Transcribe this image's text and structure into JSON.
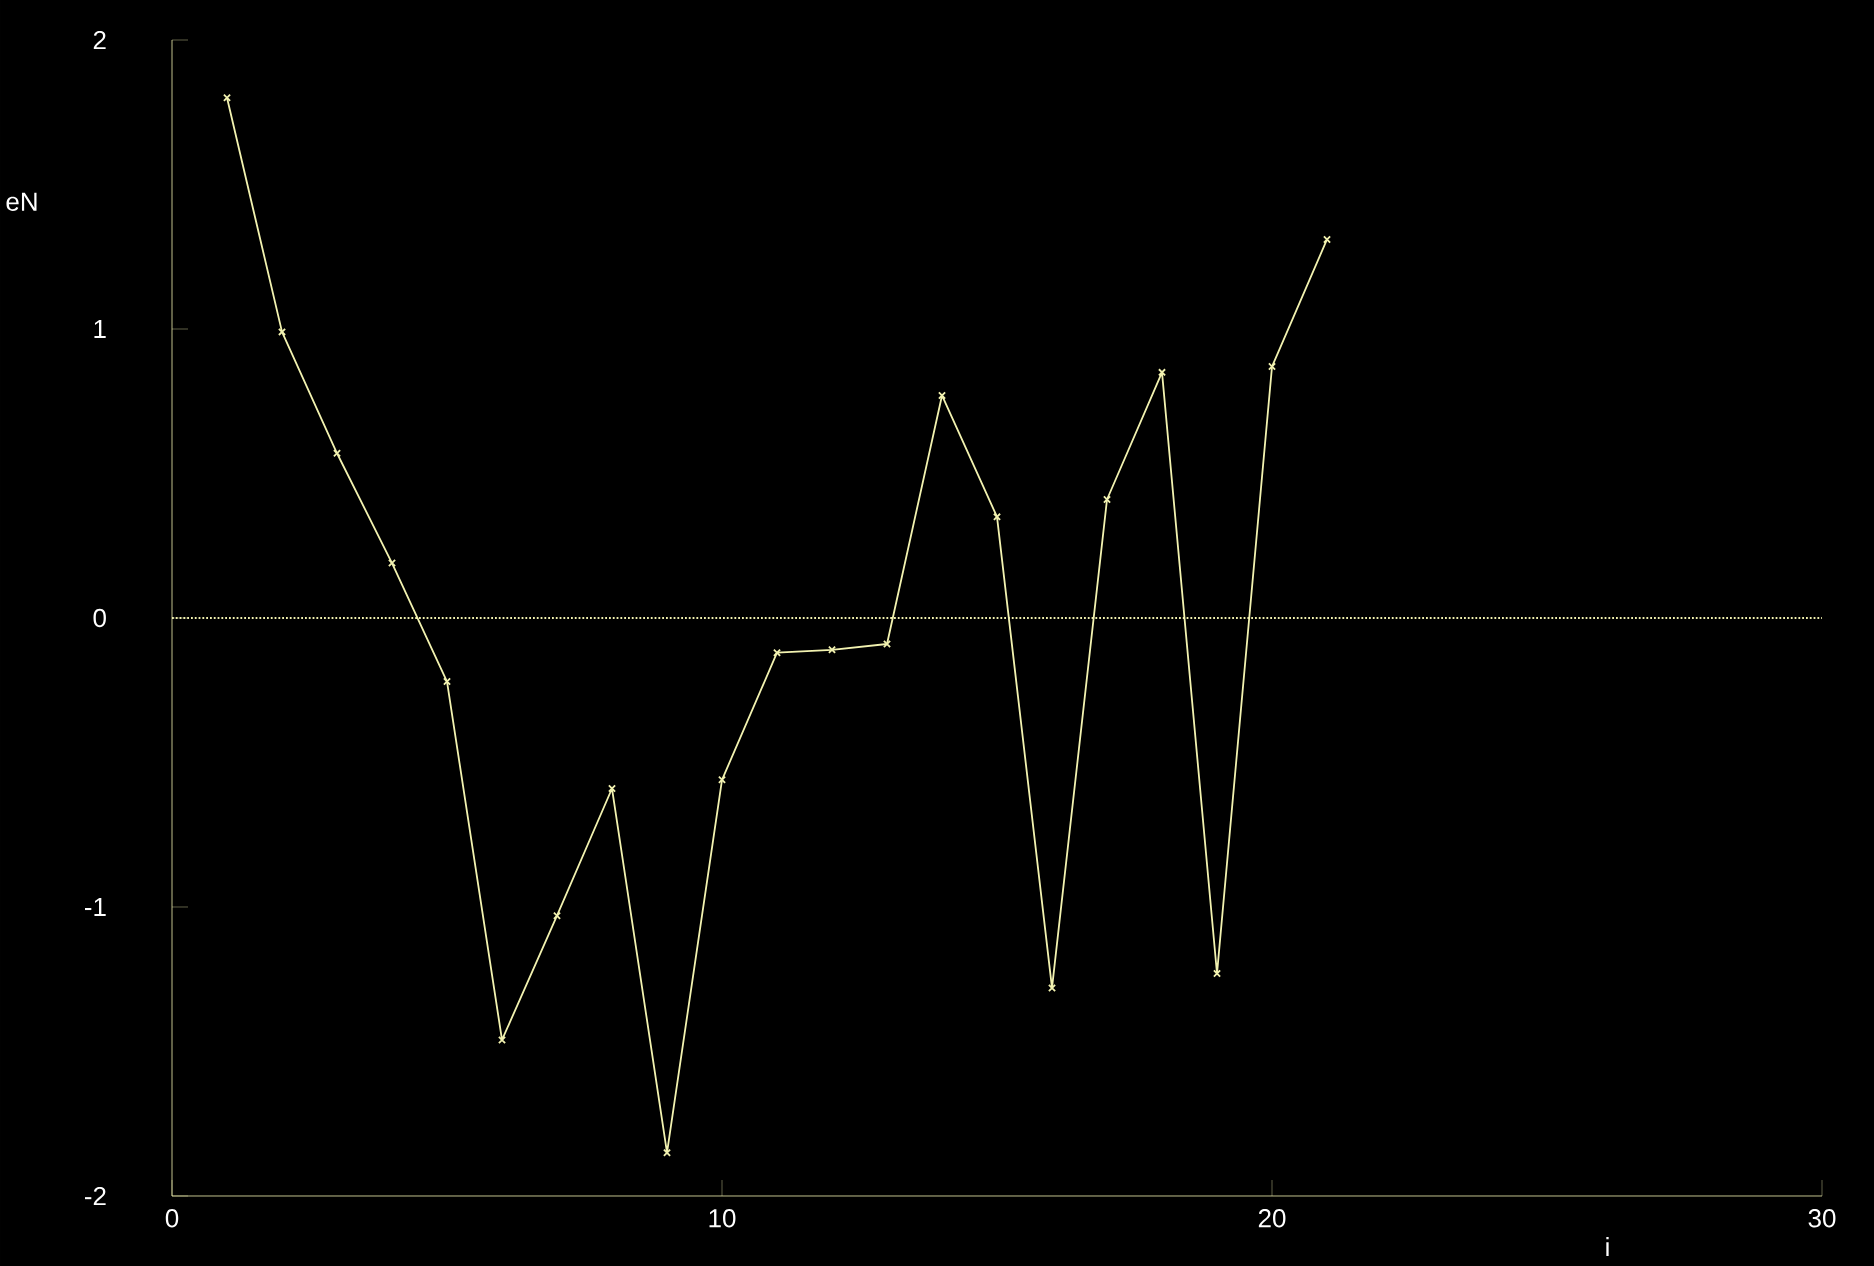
{
  "chart_data": {
    "type": "line",
    "xlabel": "i",
    "ylabel": "eN",
    "x": [
      1,
      2,
      3,
      4,
      5,
      6,
      7,
      8,
      9,
      10,
      11,
      12,
      13,
      14,
      15,
      16,
      17,
      18,
      19,
      20,
      21
    ],
    "values": [
      1.8,
      0.99,
      0.57,
      0.19,
      -0.22,
      -1.46,
      -1.03,
      -0.59,
      -1.85,
      -0.56,
      -0.12,
      -0.11,
      -0.09,
      0.77,
      0.35,
      -1.28,
      0.41,
      0.85,
      -1.23,
      0.87,
      1.31
    ],
    "color": "#f2f2b0",
    "marker": "cross",
    "line_style": "solid",
    "xlim": [
      0,
      30
    ],
    "ylim": [
      -2,
      2
    ],
    "xticks": [
      0,
      10,
      20,
      30
    ],
    "yticks": [
      -2,
      -1,
      0,
      1,
      2
    ],
    "ref_lines": [
      {
        "axis": "y",
        "value": 0,
        "color": "#f2f2b0",
        "line_style": "dotted"
      }
    ]
  }
}
